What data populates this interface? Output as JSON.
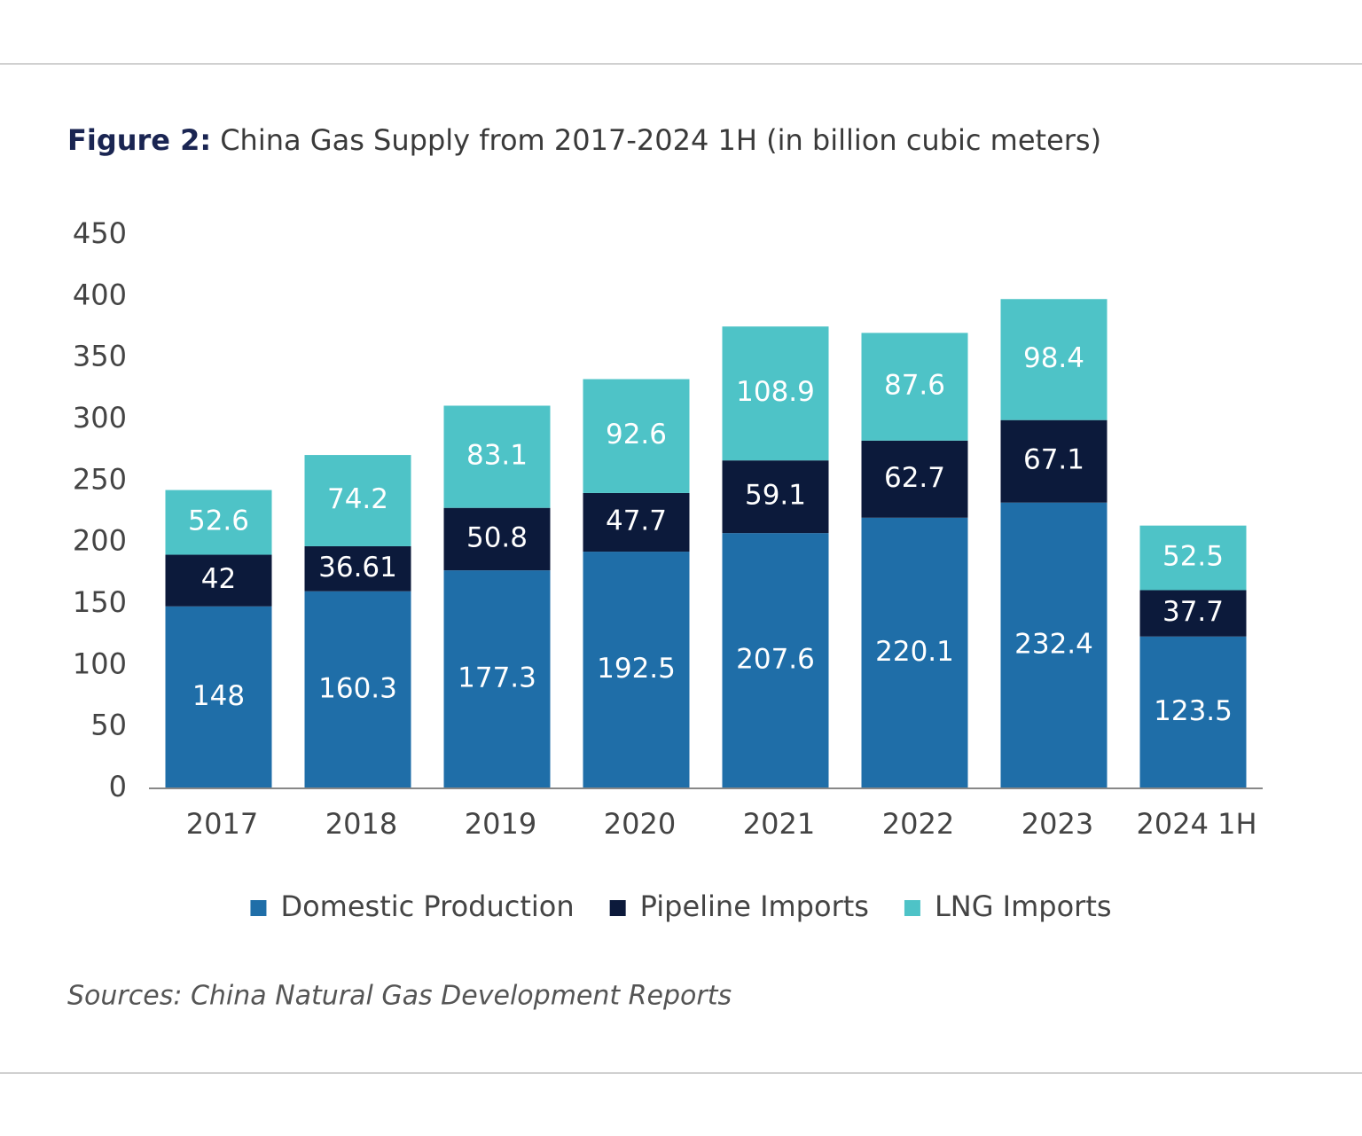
{
  "chart_data": {
    "type": "stacked_bar",
    "figure_label": "Figure 2:",
    "title": "China Gas Supply from 2017-2024 1H (in billion cubic meters)",
    "source": "Sources: China Natural Gas Development Reports",
    "categories": [
      "2017",
      "2018",
      "2019",
      "2020",
      "2021",
      "2022",
      "2023",
      "2024 1H"
    ],
    "series": [
      {
        "name": "Domestic Production",
        "color": "#1f6ea8",
        "values": [
          148,
          160.3,
          177.3,
          192.5,
          207.6,
          220.1,
          232.4,
          123.5
        ]
      },
      {
        "name": "Pipeline Imports",
        "color": "#0c1a3b",
        "values": [
          42,
          36.61,
          50.8,
          47.7,
          59.1,
          62.7,
          67.1,
          37.7
        ]
      },
      {
        "name": "LNG Imports",
        "color": "#4ec3c7",
        "values": [
          52.6,
          74.2,
          83.1,
          92.6,
          108.9,
          87.6,
          98.4,
          52.5
        ]
      }
    ],
    "ylim": [
      0,
      450
    ],
    "yticks": [
      0,
      50,
      100,
      150,
      200,
      250,
      300,
      350,
      400,
      450
    ],
    "grid": false,
    "legend": "bottom"
  }
}
